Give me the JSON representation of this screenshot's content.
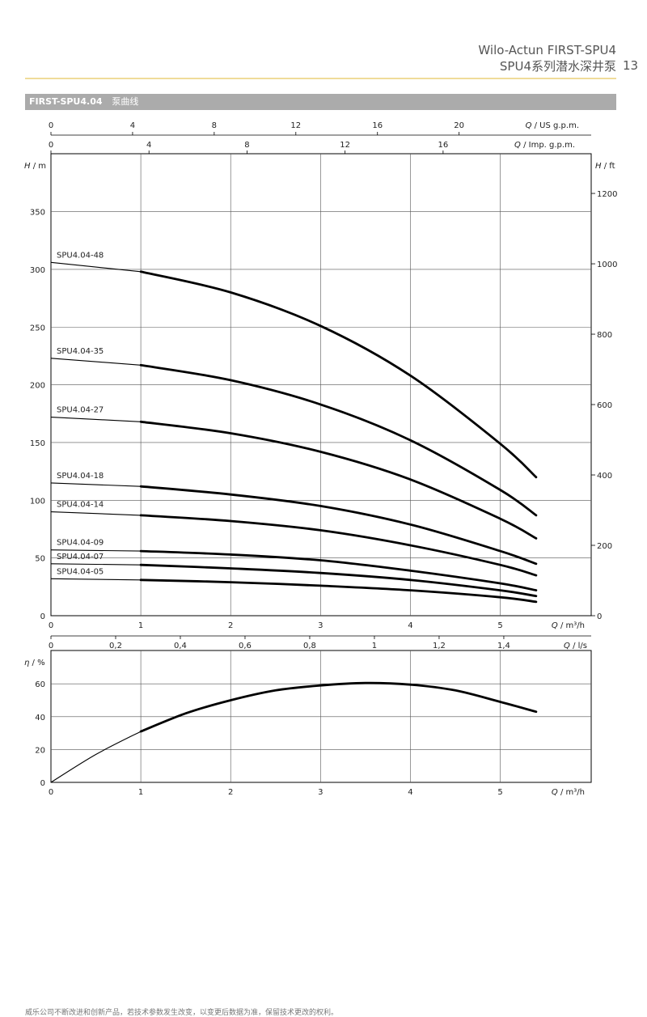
{
  "header": {
    "title_line1": "Wilo-Actun FIRST-SPU4",
    "title_line2": "SPU4系列潜水深井泵",
    "page_number": "13"
  },
  "banner": {
    "title": "FIRST-SPU4.04",
    "subtitle": "泵曲线"
  },
  "footer": {
    "note": "威乐公司不断改进和创新产品，若技术参数发生改变，以变更后数据为准，保留技术更改的权利。"
  },
  "colors": {
    "accent_rule": "#f0dc9a",
    "banner_bg": "#ababab",
    "curve": "#000000",
    "grid": "#555555"
  },
  "chart_data": [
    {
      "type": "line",
      "title": "",
      "x_axis": {
        "label_var": "Q",
        "label_unit": "/ m³/h",
        "min": 0,
        "max": 6.0,
        "ticks": [
          0,
          1,
          2,
          3,
          4,
          5
        ]
      },
      "y_axis": {
        "label_var": "H",
        "label_unit": "/ m",
        "min": 0,
        "max": 400,
        "ticks": [
          0,
          50,
          100,
          150,
          200,
          250,
          300,
          350
        ]
      },
      "y2_axis": {
        "label_var": "H",
        "label_unit": "/ ft",
        "ticks": [
          0,
          200,
          400,
          600,
          800,
          1000,
          1200
        ]
      },
      "top_axis_us": {
        "label_var": "Q",
        "label_unit": "/ US g.p.m.",
        "ticks": [
          0,
          4,
          8,
          12,
          16,
          20
        ]
      },
      "top_axis_imp": {
        "label_var": "Q",
        "label_unit": "/ Imp. g.p.m.",
        "ticks": [
          0,
          4,
          8,
          12,
          16
        ]
      },
      "bottom_axis_ls": {
        "label_var": "Q",
        "label_unit": "/ l/s",
        "ticks": [
          "0",
          "0,2",
          "0,4",
          "0,6",
          "0,8",
          "1",
          "1,2",
          "1,4"
        ]
      },
      "grid": true,
      "series": [
        {
          "name": "SPU4.04-48",
          "x": [
            0,
            1,
            2,
            3,
            4,
            5,
            5.4
          ],
          "y": [
            306,
            298,
            280,
            251,
            208,
            149,
            120
          ]
        },
        {
          "name": "SPU4.04-35",
          "x": [
            0,
            1,
            2,
            3,
            4,
            5,
            5.4
          ],
          "y": [
            223,
            217,
            204,
            183,
            152,
            109,
            87
          ]
        },
        {
          "name": "SPU4.04-27",
          "x": [
            0,
            1,
            2,
            3,
            4,
            5,
            5.4
          ],
          "y": [
            172,
            168,
            158,
            142,
            118,
            84,
            67
          ]
        },
        {
          "name": "SPU4.04-18",
          "x": [
            0,
            1,
            2,
            3,
            4,
            5,
            5.4
          ],
          "y": [
            115,
            112,
            105,
            95,
            79,
            56,
            45
          ]
        },
        {
          "name": "SPU4.04-14",
          "x": [
            0,
            1,
            2,
            3,
            4,
            5,
            5.4
          ],
          "y": [
            90,
            87,
            82,
            74,
            61,
            44,
            35
          ]
        },
        {
          "name": "SPU4.04-09",
          "x": [
            0,
            1,
            2,
            3,
            4,
            5,
            5.4
          ],
          "y": [
            57,
            56,
            53,
            48,
            39,
            28,
            22
          ]
        },
        {
          "name": "SPU4.04-07",
          "x": [
            0,
            1,
            2,
            3,
            4,
            5,
            5.4
          ],
          "y": [
            45,
            44,
            41,
            37,
            31,
            22,
            17
          ]
        },
        {
          "name": "SPU4.04-05",
          "x": [
            0,
            1,
            2,
            3,
            4,
            5,
            5.4
          ],
          "y": [
            32,
            31,
            29,
            26,
            22,
            16,
            12
          ]
        }
      ]
    },
    {
      "type": "line",
      "title": "",
      "x_axis": {
        "label_var": "Q",
        "label_unit": "/ m³/h",
        "min": 0,
        "max": 6.0,
        "ticks": [
          0,
          1,
          2,
          3,
          4,
          5
        ]
      },
      "y_axis": {
        "label_var": "η",
        "label_unit": "/ %",
        "min": 0,
        "max": 80,
        "ticks": [
          0,
          20,
          40,
          60
        ]
      },
      "grid": true,
      "series": [
        {
          "name": "",
          "x": [
            0,
            0.5,
            1,
            1.5,
            2,
            2.5,
            3,
            3.5,
            4,
            4.5,
            5,
            5.4
          ],
          "y": [
            0,
            17,
            31,
            42,
            50,
            56,
            59,
            60.5,
            59.5,
            56,
            49,
            43
          ]
        }
      ]
    }
  ]
}
